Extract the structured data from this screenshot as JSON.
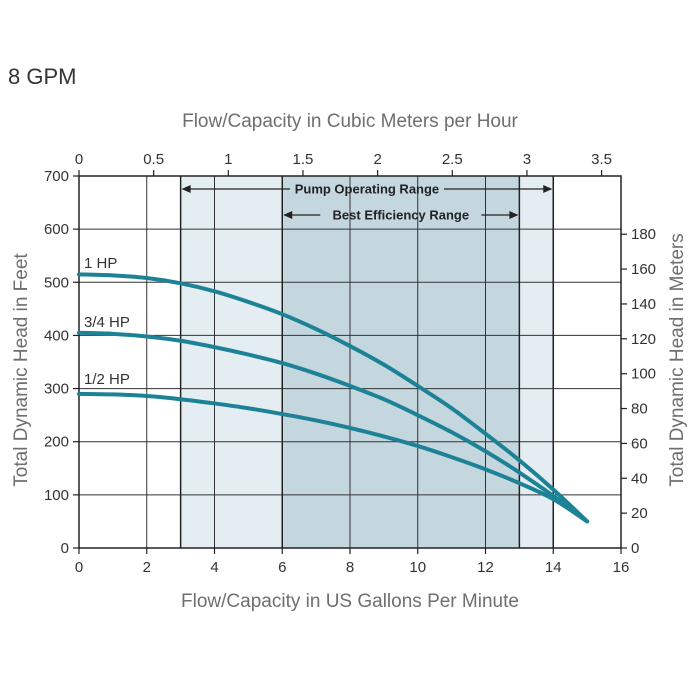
{
  "page_title": "8 GPM",
  "chart_data": {
    "type": "line",
    "title": "",
    "x_bottom": {
      "label": "Flow/Capacity in US Gallons Per Minute",
      "range": [
        0,
        16
      ],
      "ticks": [
        0,
        2,
        4,
        6,
        8,
        10,
        12,
        14,
        16
      ],
      "gridlines": [
        2,
        4,
        6,
        8,
        10,
        12,
        14,
        16
      ]
    },
    "x_top": {
      "label": "Flow/Capacity in Cubic Meters per Hour",
      "range": [
        0,
        3.63
      ],
      "ticks": [
        0,
        0.5,
        1,
        1.5,
        2,
        2.5,
        3,
        3.5
      ],
      "tick_labels": [
        "0",
        "0.5",
        "1",
        "1.5",
        "2",
        "2.5",
        "3",
        "3.5"
      ]
    },
    "y_left": {
      "label": "Total Dynamic Head in Feet",
      "range": [
        0,
        700
      ],
      "ticks": [
        0,
        100,
        200,
        300,
        400,
        500,
        600,
        700
      ]
    },
    "y_right": {
      "label": "Total Dynamic Head in Meters",
      "range": [
        0,
        213.4
      ],
      "ticks": [
        0,
        20,
        40,
        60,
        80,
        100,
        120,
        140,
        160,
        180
      ]
    },
    "grid": true,
    "ranges": [
      {
        "name": "Pump Operating Range",
        "x": [
          3,
          14
        ],
        "color": "#e4edf1"
      },
      {
        "name": "Best Efficiency Range",
        "x": [
          6,
          13
        ],
        "color": "#c4d7df"
      }
    ],
    "series": [
      {
        "name": "1 HP",
        "color": "#1e8296",
        "x": [
          0,
          1,
          2,
          3,
          4,
          5,
          6,
          7,
          8,
          9,
          10,
          11,
          12,
          13,
          14,
          15
        ],
        "values": [
          515,
          513,
          508,
          498,
          483,
          463,
          440,
          412,
          380,
          345,
          305,
          263,
          215,
          165,
          110,
          50
        ]
      },
      {
        "name": "3/4 HP",
        "color": "#1e8296",
        "x": [
          0,
          1,
          2,
          3,
          4,
          5,
          6,
          7,
          8,
          9,
          10,
          11,
          12,
          13,
          14,
          15
        ],
        "values": [
          405,
          403,
          398,
          390,
          378,
          364,
          348,
          328,
          305,
          280,
          250,
          218,
          182,
          142,
          98,
          50
        ]
      },
      {
        "name": "1/2 HP",
        "color": "#1e8296",
        "x": [
          0,
          1,
          2,
          3,
          4,
          5,
          6,
          7,
          8,
          9,
          10,
          11,
          12,
          13,
          14,
          15
        ],
        "values": [
          290,
          289,
          286,
          280,
          272,
          263,
          252,
          240,
          226,
          210,
          192,
          171,
          148,
          122,
          92,
          50
        ]
      }
    ]
  }
}
